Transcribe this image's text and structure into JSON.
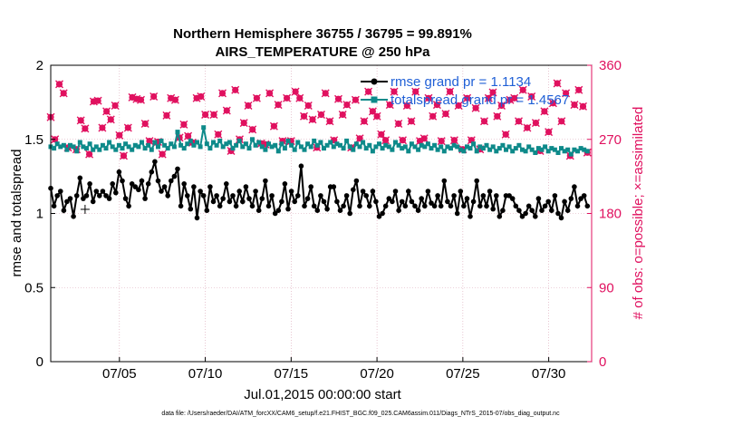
{
  "chart_data": {
    "type": "line",
    "title": [
      "Northern Hemisphere 36755 / 36795 = 99.891%",
      "AIRS_TEMPERATURE @ 250 hPa"
    ],
    "xlabel": "Jul.01,2015 00:00:00 start",
    "ylabel": "rmse and totalspread",
    "y2label": "# of obs: o=possible; ×=assimilated",
    "xlim": [
      1,
      32.5
    ],
    "ylim": [
      0,
      2
    ],
    "y2lim": [
      0,
      360
    ],
    "xticks": [
      5,
      10,
      15,
      20,
      25,
      30
    ],
    "xtick_labels": [
      "07/05",
      "07/10",
      "07/15",
      "07/20",
      "07/25",
      "07/30"
    ],
    "yticks": [
      0,
      0.5,
      1,
      1.5,
      2
    ],
    "ytick_labels": [
      "0",
      "0.5",
      "1",
      "1.5",
      "2"
    ],
    "y2ticks": [
      0,
      90,
      180,
      270,
      360
    ],
    "y2tick_labels": [
      "0",
      "90",
      "180",
      "270",
      "360"
    ],
    "legend_placement": "top-right",
    "colors": {
      "rmse": "#000000",
      "spread": "#0e8a8a",
      "obs": "#e0115f",
      "legend_text": "#1f5fd6",
      "grid": "#d9a3b4"
    },
    "series": [
      {
        "name": "rmse grand pr = 1.1134",
        "axis": "left",
        "values": [
          1.17,
          1.05,
          1.12,
          1.15,
          1.02,
          1.08,
          1.1,
          0.98,
          1.12,
          1.24,
          1.1,
          1.12,
          1.2,
          1.08,
          1.15,
          1.12,
          1.15,
          1.12,
          1.1,
          1.2,
          1.14,
          1.28,
          1.22,
          1.1,
          1.05,
          1.2,
          1.18,
          1.16,
          1.22,
          1.1,
          1.2,
          1.28,
          1.35,
          1.22,
          1.15,
          1.18,
          1.12,
          1.22,
          1.25,
          1.3,
          1.05,
          1.2,
          1.12,
          1.03,
          1.18,
          0.97,
          1.15,
          1.12,
          1.02,
          1.18,
          1.08,
          1.12,
          1.05,
          1.1,
          1.2,
          1.08,
          1.12,
          1.05,
          1.15,
          1.08,
          1.18,
          1.1,
          1.05,
          1.15,
          1.02,
          1.1,
          1.22,
          1.05,
          1.12,
          1.0,
          1.02,
          1.08,
          1.2,
          1.03,
          1.15,
          1.08,
          1.12,
          1.32,
          1.05,
          1.1,
          1.18,
          1.05,
          1.02,
          1.12,
          1.08,
          1.03,
          1.18,
          1.18,
          1.08,
          1.02,
          1.05,
          1.12,
          1.0,
          1.16,
          1.22,
          1.05,
          1.15,
          1.12,
          1.05,
          1.15,
          1.08,
          0.98,
          1.0,
          1.05,
          1.1,
          1.08,
          1.15,
          1.02,
          1.08,
          1.05,
          1.15,
          1.08,
          1.05,
          1.02,
          1.1,
          1.05,
          1.15,
          1.07,
          1.05,
          1.12,
          1.05,
          1.22,
          1.08,
          1.05,
          1.12,
          1.0,
          1.15,
          1.05,
          1.1,
          0.98,
          1.08,
          1.22,
          1.05,
          1.12,
          1.05,
          1.15,
          1.03,
          1.12,
          0.98,
          1.02,
          1.12,
          1.12,
          1.1,
          1.05,
          1.02,
          0.98,
          1.0,
          1.05,
          1.02,
          0.98,
          1.1,
          1.02,
          1.05,
          1.08,
          1.02,
          1.12,
          1.0,
          0.97,
          1.08,
          1.02,
          1.1,
          1.18,
          1.05,
          1.1,
          1.12,
          1.05
        ]
      },
      {
        "name": "totalspread grand pr = 1.4567",
        "axis": "left",
        "values": [
          1.45,
          1.44,
          1.47,
          1.45,
          1.46,
          1.43,
          1.46,
          1.45,
          1.42,
          1.48,
          1.45,
          1.44,
          1.47,
          1.43,
          1.45,
          1.43,
          1.46,
          1.44,
          1.48,
          1.45,
          1.43,
          1.46,
          1.44,
          1.47,
          1.45,
          1.43,
          1.46,
          1.45,
          1.48,
          1.44,
          1.46,
          1.43,
          1.48,
          1.45,
          1.49,
          1.46,
          1.44,
          1.47,
          1.45,
          1.55,
          1.46,
          1.44,
          1.47,
          1.49,
          1.46,
          1.48,
          1.45,
          1.58,
          1.47,
          1.44,
          1.48,
          1.46,
          1.49,
          1.45,
          1.47,
          1.48,
          1.44,
          1.46,
          1.49,
          1.45,
          1.47,
          1.44,
          1.5,
          1.46,
          1.48,
          1.45,
          1.43,
          1.47,
          1.45,
          1.46,
          1.42,
          1.47,
          1.44,
          1.49,
          1.46,
          1.43,
          1.48,
          1.45,
          1.43,
          1.47,
          1.45,
          1.49,
          1.46,
          1.48,
          1.44,
          1.46,
          1.48,
          1.45,
          1.47,
          1.46,
          1.44,
          1.49,
          1.45,
          1.43,
          1.47,
          1.45,
          1.48,
          1.44,
          1.46,
          1.42,
          1.45,
          1.47,
          1.44,
          1.46,
          1.45,
          1.43,
          1.48,
          1.46,
          1.44,
          1.45,
          1.42,
          1.47,
          1.45,
          1.43,
          1.46,
          1.45,
          1.47,
          1.44,
          1.46,
          1.43,
          1.45,
          1.42,
          1.45,
          1.44,
          1.46,
          1.45,
          1.43,
          1.42,
          1.45,
          1.44,
          1.47,
          1.42,
          1.45,
          1.44,
          1.46,
          1.43,
          1.45,
          1.42,
          1.44,
          1.46,
          1.43,
          1.45,
          1.42,
          1.44,
          1.46,
          1.43,
          1.42,
          1.45,
          1.43,
          1.41,
          1.44,
          1.43,
          1.45,
          1.42,
          1.44,
          1.43,
          1.41,
          1.44,
          1.42,
          1.43,
          1.4,
          1.43,
          1.42,
          1.44,
          1.43,
          1.42
        ]
      },
      {
        "name": "obs count",
        "axis": "right",
        "x": [
          1.0,
          1.25,
          1.5,
          1.75,
          2.0,
          2.5,
          2.75,
          3.0,
          3.25,
          3.5,
          3.75,
          4.0,
          4.25,
          4.5,
          4.75,
          5.0,
          5.25,
          5.5,
          5.75,
          6.0,
          6.25,
          6.5,
          6.75,
          7.0,
          7.25,
          7.5,
          7.75,
          8.0,
          8.25,
          8.5,
          8.75,
          9.0,
          9.25,
          9.5,
          9.75,
          10.0,
          10.5,
          10.75,
          11.0,
          11.25,
          11.5,
          11.75,
          12.0,
          12.25,
          12.5,
          12.75,
          13.0,
          13.25,
          13.5,
          13.75,
          14.0,
          14.25,
          14.5,
          14.75,
          15.0,
          15.25,
          15.5,
          15.75,
          16.0,
          16.25,
          16.5,
          16.75,
          17.0,
          17.25,
          17.5,
          17.75,
          18.0,
          18.25,
          18.5,
          18.75,
          19.0,
          19.25,
          19.5,
          19.75,
          20.0,
          20.25,
          20.5,
          20.75,
          21.0,
          21.25,
          21.5,
          21.75,
          22.0,
          22.25,
          22.5,
          22.75,
          23.0,
          23.25,
          23.5,
          23.75,
          24.0,
          24.25,
          24.5,
          24.75,
          25.0,
          25.25,
          25.5,
          25.75,
          26.0,
          26.25,
          26.5,
          26.75,
          27.0,
          27.25,
          27.5,
          27.75,
          28.0,
          28.25,
          28.5,
          28.75,
          29.0,
          29.25,
          29.5,
          29.75,
          30.0,
          30.25,
          30.5,
          30.75,
          31.0,
          31.25,
          31.5,
          31.75,
          32.0,
          32.25
        ],
        "values": [
          297,
          270,
          337,
          326,
          260,
          258,
          293,
          283,
          252,
          316,
          317,
          284,
          304,
          294,
          311,
          275,
          250,
          284,
          321,
          319,
          318,
          289,
          268,
          322,
          267,
          252,
          299,
          320,
          318,
          272,
          288,
          274,
          266,
          320,
          322,
          300,
          300,
          276,
          326,
          305,
          256,
          330,
          270,
          290,
          311,
          282,
          320,
          265,
          264,
          326,
          286,
          312,
          268,
          320,
          268,
          328,
          320,
          298,
          311,
          294,
          260,
          300,
          326,
          292,
          269,
          319,
          300,
          312,
          260,
          318,
          271,
          292,
          328,
          304,
          298,
          276,
          269,
          312,
          328,
          289,
          269,
          311,
          292,
          328,
          268,
          271,
          320,
          298,
          312,
          268,
          301,
          328,
          269,
          311,
          258,
          320,
          269,
          308,
          258,
          292,
          320,
          327,
          298,
          311,
          276,
          318,
          320,
          292,
          330,
          284,
          322,
          290,
          256,
          304,
          279,
          314,
          338,
          292,
          326,
          250,
          312,
          330,
          310,
          254
        ]
      }
    ],
    "crosshair_marker": {
      "x": 3.0,
      "y2": 185
    }
  },
  "footer": "data file: /Users/raeder/DAI/ATM_forcXX/CAM6_setup/f.e21.FHIST_BGC.f09_025.CAM6assim.011/Diags_NTrS_2015-07/obs_diag_output.nc"
}
